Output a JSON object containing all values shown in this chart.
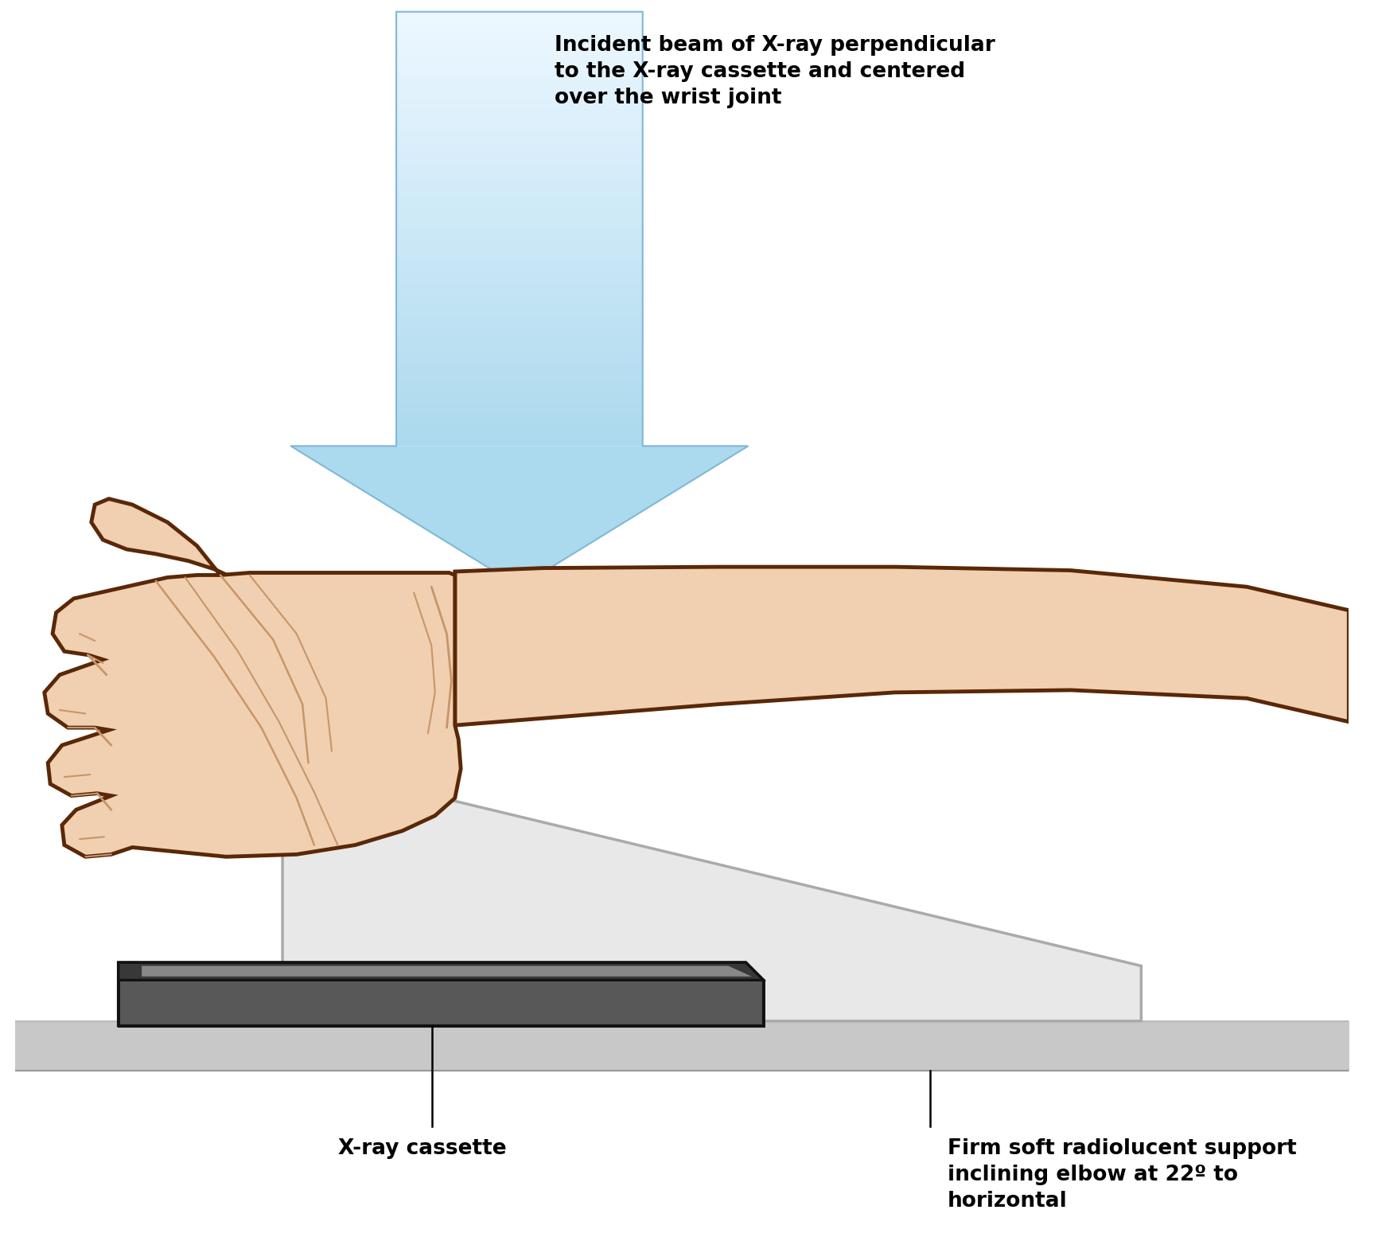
{
  "background_color": "#ffffff",
  "arrow_fill_top": "#e8f4fc",
  "arrow_fill_bot": "#a8d4ec",
  "arrow_edge": "#80b8d8",
  "skin_fill": "#f0d0b0",
  "skin_outline": "#5a2808",
  "skin_crease": "#c8956a",
  "wedge_fill": "#e8e8e8",
  "wedge_edge": "#aaaaaa",
  "cassette_top": "#3a3a3a",
  "cassette_body": "#606060",
  "cassette_hi": "#909090",
  "cassette_edge": "#111111",
  "table_fill": "#c8c8c8",
  "table_edge": "#aaaaaa",
  "label_color": "#000000",
  "leader_color": "#000000",
  "text_incident": "Incident beam of X-ray perpendicular\nto the X-ray cassette and centered\nover the wrist joint",
  "text_cassette": "X-ray cassette",
  "text_support": "Firm soft radiolucent support\ninclining elbow at 22º to\nhorizontal",
  "fig_width": 17.37,
  "fig_height": 15.54
}
